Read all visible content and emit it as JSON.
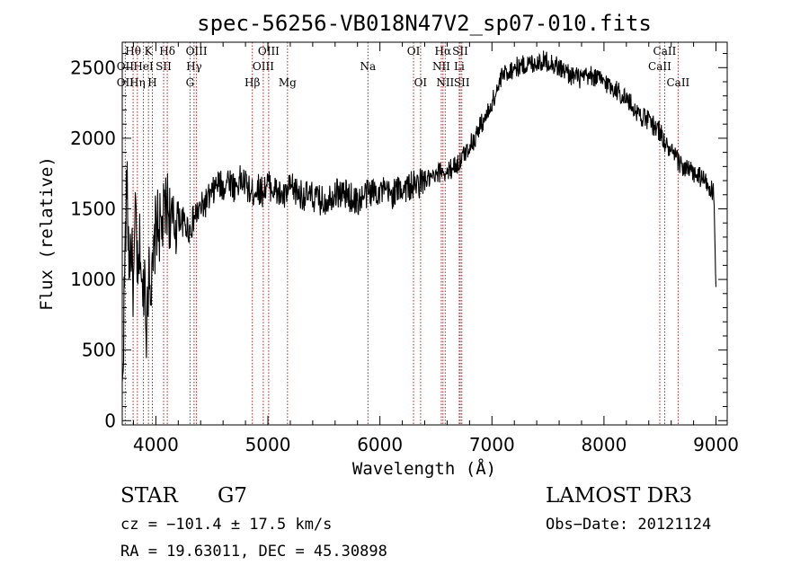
{
  "chart_data": {
    "type": "line",
    "title": "spec-56256-VB018N47V2_sp07-010.fits",
    "xlabel": "Wavelength (Å)",
    "ylabel": "Flux (relative)",
    "xlim": [
      3700,
      9100
    ],
    "ylim": [
      -30,
      2680
    ],
    "xticks": [
      4000,
      5000,
      6000,
      7000,
      8000,
      9000
    ],
    "yticks": [
      0,
      500,
      1000,
      1500,
      2000,
      2500
    ],
    "minor_x_step": 200,
    "minor_y_step": 100,
    "series": [
      {
        "name": "flux",
        "x": [
          3700,
          3720,
          3740,
          3760,
          3780,
          3800,
          3820,
          3840,
          3860,
          3880,
          3900,
          3920,
          3940,
          3960,
          3980,
          4000,
          4050,
          4100,
          4150,
          4200,
          4250,
          4300,
          4350,
          4400,
          4450,
          4500,
          4550,
          4600,
          4650,
          4700,
          4750,
          4800,
          4850,
          4900,
          4950,
          5000,
          5050,
          5100,
          5150,
          5200,
          5300,
          5400,
          5500,
          5600,
          5700,
          5800,
          5900,
          6000,
          6100,
          6200,
          6300,
          6400,
          6500,
          6550,
          6600,
          6650,
          6700,
          6750,
          6800,
          6850,
          6900,
          6950,
          7000,
          7050,
          7100,
          7200,
          7300,
          7400,
          7500,
          7600,
          7700,
          7800,
          7900,
          8000,
          8100,
          8200,
          8300,
          8400,
          8500,
          8550,
          8600,
          8650,
          8700,
          8800,
          8900,
          8980,
          9000
        ],
        "y": [
          150,
          1000,
          1700,
          1150,
          1250,
          900,
          1500,
          900,
          1300,
          800,
          1100,
          600,
          1200,
          900,
          1100,
          1400,
          1350,
          1550,
          1350,
          1450,
          1400,
          1350,
          1450,
          1500,
          1550,
          1600,
          1680,
          1650,
          1720,
          1650,
          1700,
          1680,
          1600,
          1650,
          1620,
          1680,
          1640,
          1600,
          1580,
          1650,
          1600,
          1580,
          1550,
          1620,
          1600,
          1550,
          1620,
          1630,
          1600,
          1650,
          1660,
          1700,
          1720,
          1780,
          1750,
          1800,
          1820,
          1880,
          1950,
          2000,
          2100,
          2150,
          2250,
          2350,
          2450,
          2500,
          2520,
          2540,
          2550,
          2500,
          2450,
          2420,
          2440,
          2400,
          2350,
          2280,
          2180,
          2120,
          2050,
          1950,
          1900,
          1850,
          1800,
          1750,
          1700,
          1600,
          900
        ]
      }
    ],
    "spectral_lines": [
      {
        "label": "Hθ",
        "x": 3797,
        "row": 0
      },
      {
        "label": "OII",
        "x": 3727,
        "row": 1
      },
      {
        "label": "OII",
        "x": 3727,
        "row": 2
      },
      {
        "label": "K",
        "x": 3934,
        "row": 0
      },
      {
        "label": "HeI",
        "x": 3889,
        "row": 1
      },
      {
        "label": "Hη",
        "x": 3835,
        "row": 2
      },
      {
        "label": "SII",
        "x": 4069,
        "row": 1
      },
      {
        "label": "H",
        "x": 3969,
        "row": 2
      },
      {
        "label": "Hδ",
        "x": 4102,
        "row": 0
      },
      {
        "label": "OIII",
        "x": 4363,
        "row": 0
      },
      {
        "label": "Hγ",
        "x": 4341,
        "row": 1
      },
      {
        "label": "G",
        "x": 4305,
        "row": 2
      },
      {
        "label": "OIII",
        "x": 5007,
        "row": 0
      },
      {
        "label": "OIII",
        "x": 4959,
        "row": 1
      },
      {
        "label": "Hβ",
        "x": 4861,
        "row": 2
      },
      {
        "label": "Mg",
        "x": 5175,
        "row": 2
      },
      {
        "label": "Na",
        "x": 5893,
        "row": 1
      },
      {
        "label": "OI",
        "x": 6300,
        "row": 0
      },
      {
        "label": "OI",
        "x": 6363,
        "row": 2
      },
      {
        "label": "Hα",
        "x": 6563,
        "row": 0
      },
      {
        "label": "SII",
        "x": 6717,
        "row": 0
      },
      {
        "label": "NII",
        "x": 6548,
        "row": 1
      },
      {
        "label": "Li",
        "x": 6708,
        "row": 1
      },
      {
        "label": "NII",
        "x": 6583,
        "row": 2
      },
      {
        "label": "SII",
        "x": 6731,
        "row": 2
      },
      {
        "label": "CaII",
        "x": 8542,
        "row": 0
      },
      {
        "label": "CaII",
        "x": 8498,
        "row": 1
      },
      {
        "label": "CaII",
        "x": 8662,
        "row": 2
      }
    ]
  },
  "info": {
    "class": "STAR",
    "subclass": "G7",
    "survey": "LAMOST DR3",
    "cz": "cz = −101.4 ± 17.5 km/s",
    "obs_date": "Obs−Date: 20121124",
    "coords": "RA =  19.63011, DEC =  45.30898"
  },
  "colors": {
    "line_marker": "#b22222",
    "spectrum": "#000000"
  }
}
